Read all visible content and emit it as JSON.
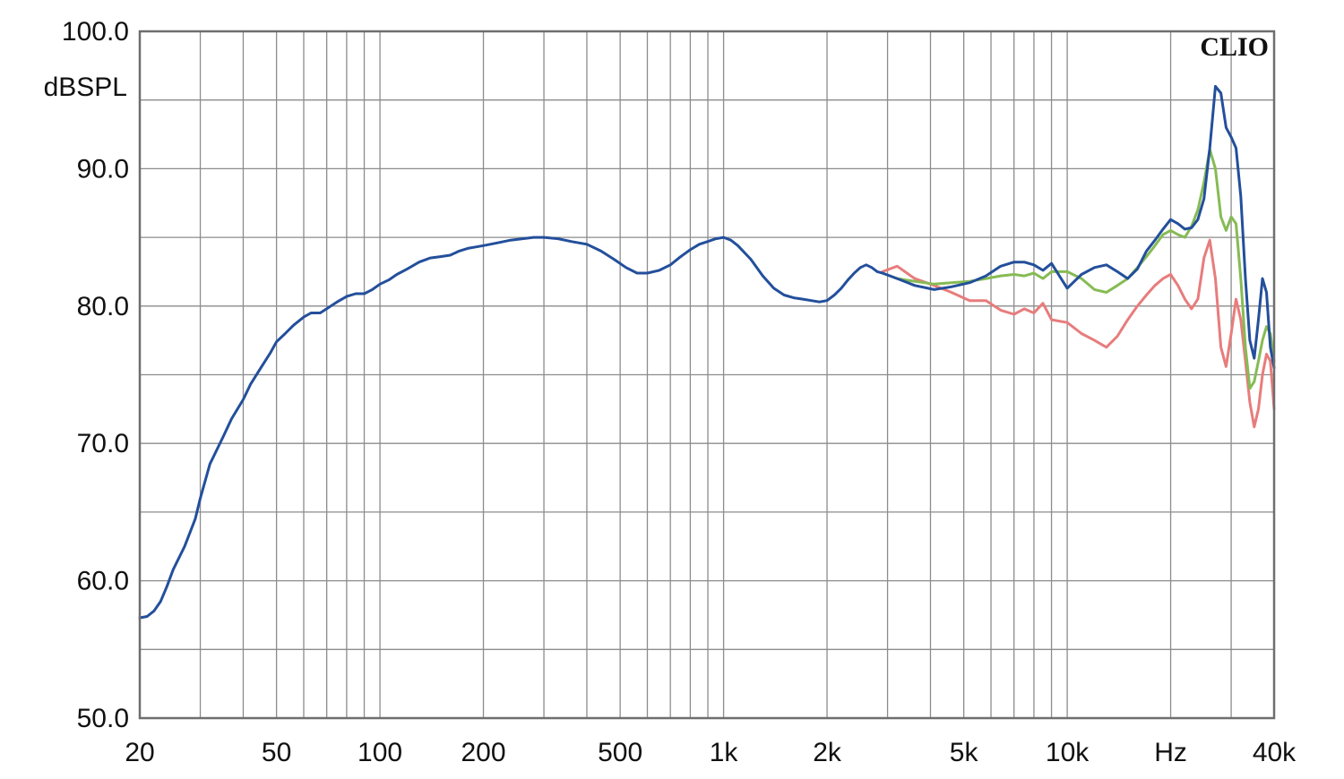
{
  "chart_data": {
    "type": "line",
    "title": "",
    "brand": "CLIO",
    "ylabel": "dBSPL",
    "xlabel": "Hz",
    "x_scale": "log",
    "xlim": [
      20,
      40000
    ],
    "ylim": [
      50,
      100
    ],
    "grid": true,
    "y_ticks": [
      {
        "value": 50,
        "label": "50.0"
      },
      {
        "value": 60,
        "label": "60.0"
      },
      {
        "value": 70,
        "label": "70.0"
      },
      {
        "value": 80,
        "label": "80.0"
      },
      {
        "value": 90,
        "label": "90.0"
      },
      {
        "value": 100,
        "label": "100.0"
      }
    ],
    "x_ticks": [
      {
        "value": 20,
        "label": "20"
      },
      {
        "value": 50,
        "label": "50"
      },
      {
        "value": 100,
        "label": "100"
      },
      {
        "value": 200,
        "label": "200"
      },
      {
        "value": 500,
        "label": "500"
      },
      {
        "value": 1000,
        "label": "1k"
      },
      {
        "value": 2000,
        "label": "2k"
      },
      {
        "value": 5000,
        "label": "5k"
      },
      {
        "value": 10000,
        "label": "10k"
      },
      {
        "value": 20000,
        "label": "Hz"
      },
      {
        "value": 40000,
        "label": "40k"
      }
    ],
    "series": [
      {
        "color": "#e87c7c",
        "x": [
          2900,
          3200,
          3600,
          4100,
          4600,
          5200,
          5800,
          6400,
          7000,
          7500,
          8000,
          8500,
          9000,
          10000,
          11000,
          12000,
          13000,
          14000,
          15000,
          16000,
          17000,
          18000,
          19000,
          20000,
          21000,
          22000,
          23000,
          24000,
          25000,
          26000,
          27000,
          28000,
          29000,
          30000,
          31000,
          32000,
          33000,
          34000,
          35000,
          36000,
          37000,
          38000,
          39000,
          40000
        ],
        "y": [
          82.5,
          82.9,
          82.0,
          81.5,
          81.0,
          80.4,
          80.4,
          79.7,
          79.4,
          79.8,
          79.5,
          80.2,
          79.0,
          78.8,
          78.0,
          77.5,
          77.0,
          77.8,
          79.0,
          80.0,
          80.8,
          81.5,
          82.0,
          82.3,
          81.5,
          80.5,
          79.8,
          80.5,
          83.5,
          84.8,
          82.0,
          77.0,
          75.6,
          78.0,
          80.5,
          79.0,
          76.0,
          73.0,
          71.2,
          72.5,
          75.0,
          76.5,
          76.0,
          72.5
        ]
      },
      {
        "color": "#86bb54",
        "x": [
          2900,
          3200,
          3600,
          4100,
          4600,
          5200,
          5800,
          6400,
          7000,
          7500,
          8000,
          8500,
          9000,
          10000,
          11000,
          12000,
          13000,
          14000,
          15000,
          16000,
          17000,
          18000,
          19000,
          20000,
          21000,
          22000,
          23000,
          24000,
          25000,
          26000,
          27000,
          28000,
          29000,
          30000,
          31000,
          32000,
          33000,
          34000,
          35000,
          36000,
          37000,
          38000,
          39000,
          40000
        ],
        "y": [
          82.4,
          82.0,
          81.8,
          81.6,
          81.7,
          81.8,
          82.0,
          82.2,
          82.3,
          82.2,
          82.4,
          82.0,
          82.5,
          82.5,
          82.0,
          81.2,
          81.0,
          81.5,
          82.0,
          82.8,
          83.6,
          84.4,
          85.2,
          85.5,
          85.2,
          85.0,
          85.8,
          87.0,
          89.0,
          91.4,
          90.0,
          86.5,
          85.5,
          86.5,
          86.0,
          82.0,
          77.0,
          74.0,
          74.5,
          76.0,
          77.5,
          78.5,
          78.0,
          76.0
        ]
      },
      {
        "color": "#234f9b",
        "x": [
          20,
          21,
          22,
          23,
          24,
          25,
          27,
          29,
          30,
          32,
          35,
          37,
          40,
          42,
          45,
          48,
          50,
          53,
          56,
          60,
          63,
          67,
          71,
          75,
          80,
          85,
          90,
          95,
          100,
          106,
          112,
          120,
          130,
          140,
          150,
          160,
          170,
          180,
          190,
          200,
          220,
          240,
          260,
          280,
          300,
          330,
          360,
          400,
          440,
          480,
          520,
          560,
          600,
          650,
          700,
          750,
          800,
          850,
          900,
          950,
          1000,
          1050,
          1100,
          1200,
          1300,
          1400,
          1500,
          1600,
          1700,
          1800,
          1900,
          2000,
          2100,
          2200,
          2300,
          2400,
          2500,
          2600,
          2700,
          2800,
          2900,
          3200,
          3600,
          4100,
          4600,
          5200,
          5800,
          6400,
          7000,
          7500,
          8000,
          8500,
          9000,
          10000,
          11000,
          12000,
          13000,
          14000,
          15000,
          16000,
          17000,
          18000,
          19000,
          20000,
          21000,
          22000,
          23000,
          24000,
          25000,
          26000,
          27000,
          28000,
          29000,
          30000,
          31000,
          32000,
          33000,
          34000,
          35000,
          36000,
          37000,
          38000,
          39000,
          40000
        ],
        "y": [
          57.3,
          57.4,
          57.8,
          58.5,
          59.6,
          60.8,
          62.5,
          64.5,
          66.0,
          68.5,
          70.5,
          71.8,
          73.2,
          74.3,
          75.5,
          76.6,
          77.4,
          78.0,
          78.6,
          79.2,
          79.5,
          79.5,
          79.9,
          80.3,
          80.7,
          80.9,
          80.9,
          81.2,
          81.6,
          81.9,
          82.3,
          82.7,
          83.2,
          83.5,
          83.6,
          83.7,
          84.0,
          84.2,
          84.3,
          84.4,
          84.6,
          84.8,
          84.9,
          85.0,
          85.0,
          84.9,
          84.7,
          84.5,
          84.0,
          83.4,
          82.8,
          82.4,
          82.4,
          82.6,
          83.0,
          83.6,
          84.1,
          84.5,
          84.7,
          84.9,
          85.0,
          84.8,
          84.4,
          83.4,
          82.2,
          81.3,
          80.8,
          80.6,
          80.5,
          80.4,
          80.3,
          80.4,
          80.8,
          81.3,
          81.9,
          82.4,
          82.8,
          83.0,
          82.8,
          82.5,
          82.4,
          82.0,
          81.5,
          81.2,
          81.4,
          81.7,
          82.2,
          82.9,
          83.2,
          83.2,
          83.0,
          82.6,
          83.1,
          81.3,
          82.3,
          82.8,
          83.0,
          82.5,
          82.0,
          82.7,
          84.0,
          84.8,
          85.6,
          86.3,
          86.0,
          85.6,
          85.7,
          86.3,
          87.8,
          91.5,
          96.0,
          95.5,
          93.0,
          92.3,
          91.5,
          88.0,
          82.0,
          77.5,
          76.2,
          79.0,
          82.0,
          81.0,
          77.0,
          75.5
        ]
      }
    ]
  }
}
